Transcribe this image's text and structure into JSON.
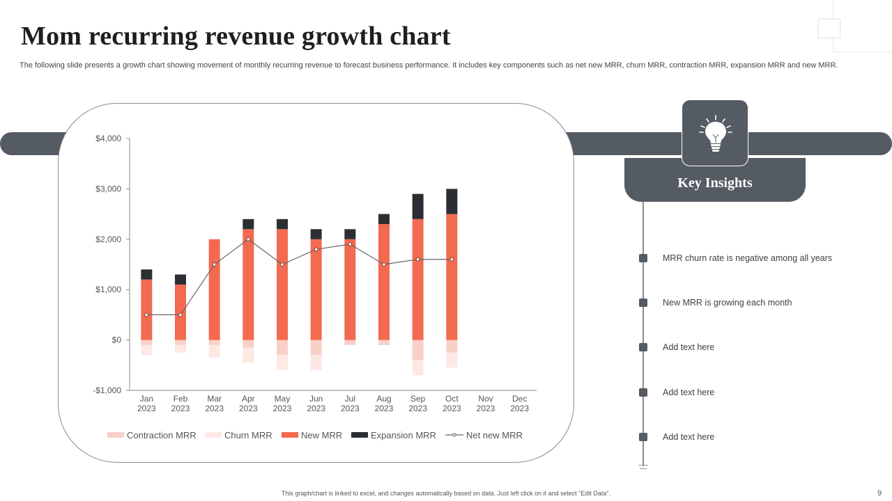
{
  "slide": {
    "title": "Mom recurring revenue growth chart",
    "subtitle": "The following slide presents a growth chart showing movement of monthly recurring revenue to forecast business performance. It includes key components such as net new MRR, churn MRR, contraction MRR, expansion MRR and new MRR.",
    "footer": "This graph/chart is linked to excel, and changes automatically based on data. Just left click on it and select \"Edit Data\".",
    "page_number": "9"
  },
  "insights": {
    "title": "Key Insights",
    "icon": "lightbulb-icon",
    "items": [
      "MRR churn rate is negative among all years",
      "New MRR is growing each month",
      "Add text here",
      "Add text here",
      "Add text here"
    ]
  },
  "colors": {
    "band": "#545b62",
    "contraction": "#f8d0c8",
    "churn": "#fde8e4",
    "new": "#f26a50",
    "expansion": "#2b2f33",
    "net_line": "#666666"
  },
  "chart_data": {
    "type": "bar",
    "stacked": true,
    "title": "",
    "xlabel": "",
    "ylabel": "",
    "ylim": [
      -1000,
      4000
    ],
    "yticks": [
      4000,
      3000,
      2000,
      1000,
      0,
      -1000
    ],
    "ytick_labels": [
      "$4,000",
      "$3,000",
      "$2,000",
      "$1,000",
      "$0",
      "-$1,000"
    ],
    "grid": false,
    "legend_position": "bottom",
    "categories": [
      [
        "Jan",
        "2023"
      ],
      [
        "Feb",
        "2023"
      ],
      [
        "Mar",
        "2023"
      ],
      [
        "Apr",
        "2023"
      ],
      [
        "May",
        "2023"
      ],
      [
        "Jun",
        "2023"
      ],
      [
        "Jul",
        "2023"
      ],
      [
        "Aug",
        "2023"
      ],
      [
        "Sep",
        "2023"
      ],
      [
        "Oct",
        "2023"
      ],
      [
        "Nov",
        "2023"
      ],
      [
        "Dec",
        "2023"
      ]
    ],
    "series": [
      {
        "name": "Contraction MRR",
        "kind": "bar",
        "values": [
          -100,
          -100,
          -100,
          -150,
          -300,
          -300,
          -100,
          -100,
          -400,
          -250,
          null,
          null
        ]
      },
      {
        "name": "Churn MRR",
        "kind": "bar",
        "values": [
          -200,
          -150,
          -250,
          -300,
          -300,
          -300,
          0,
          0,
          -300,
          -300,
          null,
          null
        ]
      },
      {
        "name": "New MRR",
        "kind": "bar",
        "values": [
          1200,
          1100,
          2000,
          2200,
          2200,
          2000,
          2000,
          2300,
          2400,
          2500,
          null,
          null
        ]
      },
      {
        "name": "Expansion MRR",
        "kind": "bar",
        "values": [
          200,
          200,
          0,
          200,
          200,
          200,
          200,
          200,
          500,
          500,
          null,
          null
        ]
      },
      {
        "name": "Net new MRR",
        "kind": "line",
        "values": [
          500,
          500,
          1500,
          2000,
          1500,
          1800,
          1900,
          1500,
          1600,
          1600,
          null,
          null
        ]
      }
    ]
  }
}
